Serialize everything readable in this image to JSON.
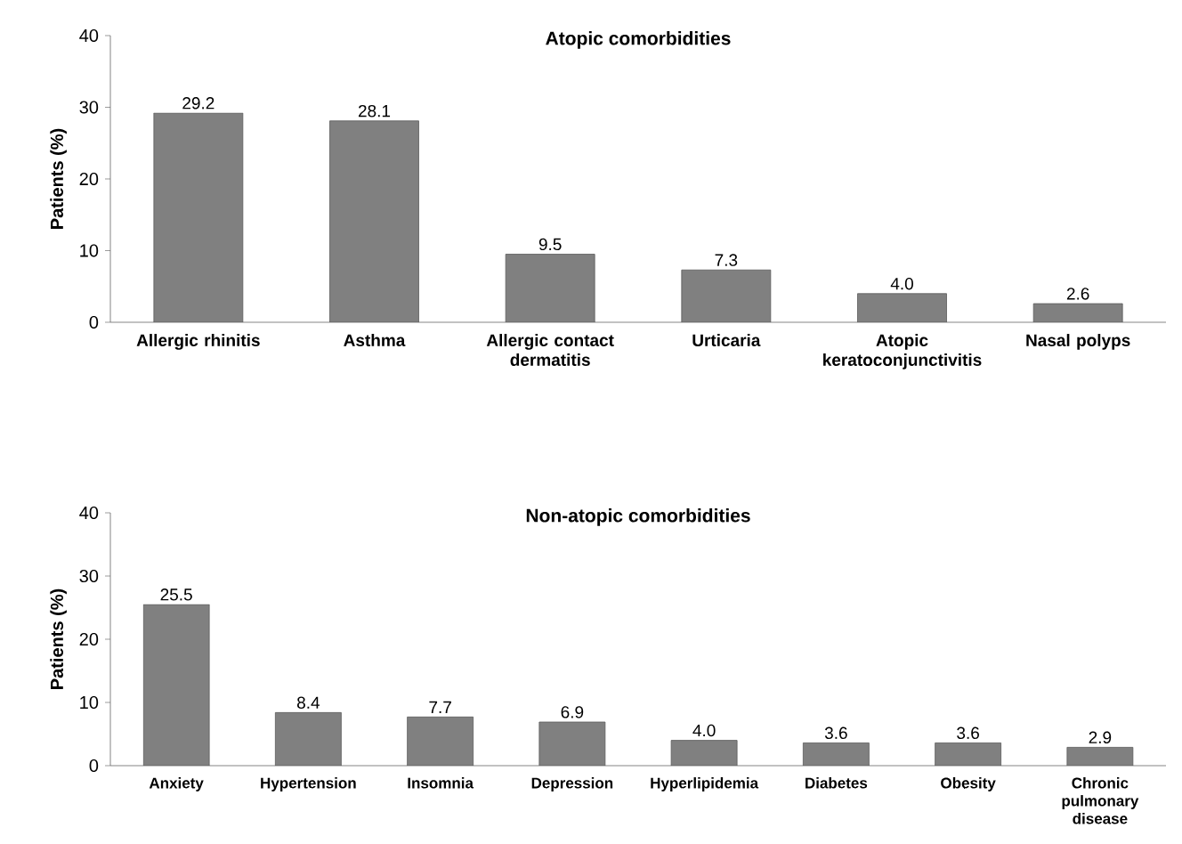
{
  "chart_data": [
    {
      "type": "bar",
      "title": "Atopic comorbidities",
      "ylabel": "Patients (%)",
      "categories": [
        "Allergic rhinitis",
        "Asthma",
        "Allergic contact dermatitis",
        "Urticaria",
        "Atopic keratoconjunctivitis",
        "Nasal polyps"
      ],
      "values": [
        29.2,
        28.1,
        9.5,
        7.3,
        4.0,
        2.6
      ],
      "value_labels": [
        "29.2",
        "28.1",
        "9.5",
        "7.3",
        "4.0",
        "2.6"
      ],
      "color": "#808080",
      "ylim": [
        0,
        40
      ],
      "yticks": [
        0,
        10,
        20,
        30,
        40
      ],
      "grid": false
    },
    {
      "type": "bar",
      "title": "Non-atopic comorbidities",
      "ylabel": "Patients (%)",
      "categories": [
        "Anxiety",
        "Hypertension",
        "Insomnia",
        "Depression",
        "Hyperlipidemia",
        "Diabetes",
        "Obesity",
        "Chronic pulmonary disease"
      ],
      "values": [
        25.5,
        8.4,
        7.7,
        6.9,
        4.0,
        3.6,
        3.6,
        2.9
      ],
      "value_labels": [
        "25.5",
        "8.4",
        "7.7",
        "6.9",
        "4.0",
        "3.6",
        "3.6",
        "2.9"
      ],
      "color": "#808080",
      "ylim": [
        0,
        40
      ],
      "yticks": [
        0,
        10,
        20,
        30,
        40
      ],
      "grid": false
    }
  ]
}
